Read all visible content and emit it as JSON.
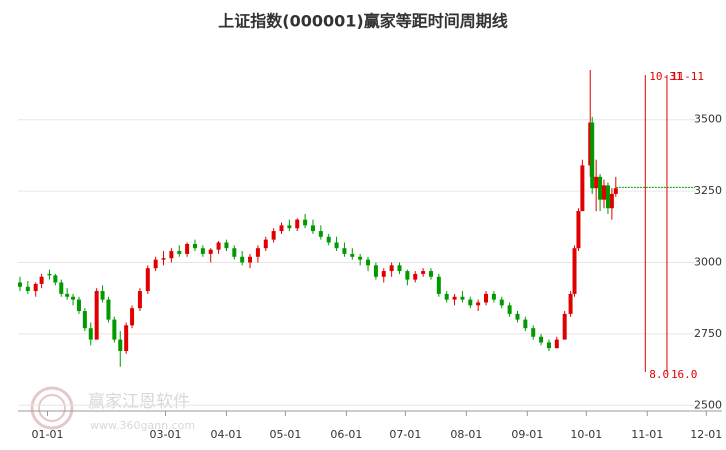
{
  "chart_data": {
    "type": "candlestick",
    "title": "上证指数(000001)赢家等距时间周期线",
    "watermark": "赢家江恩软件",
    "watermark_url": "www.360gann.com",
    "up_color": "#e00000",
    "down_color": "#009a00",
    "xlim": [
      -15,
      343
    ],
    "ylim": [
      2480,
      3730
    ],
    "xticks": [
      {
        "value": 0,
        "label": "01-01"
      },
      {
        "value": 60,
        "label": "03-01"
      },
      {
        "value": 91,
        "label": "04-01"
      },
      {
        "value": 121,
        "label": "05-01"
      },
      {
        "value": 152,
        "label": "06-01"
      },
      {
        "value": 182,
        "label": "07-01"
      },
      {
        "value": 213,
        "label": "08-01"
      },
      {
        "value": 244,
        "label": "09-01"
      },
      {
        "value": 274,
        "label": "10-01"
      },
      {
        "value": 305,
        "label": "11-01"
      },
      {
        "value": 335,
        "label": "12-01"
      }
    ],
    "yticks": [
      2500,
      2750,
      3000,
      3250,
      3500
    ],
    "grid": true,
    "reference_line": {
      "value": 3263,
      "color": "#009a00"
    },
    "cycle_lines": [
      {
        "x": 304,
        "label": "10-31",
        "bottom_label": "8.0"
      },
      {
        "x": 315,
        "label": "11-11",
        "bottom_label": "16.0"
      }
    ],
    "ohlc": [
      [
        -14,
        2930,
        2950,
        2900,
        2915
      ],
      [
        -10,
        2915,
        2935,
        2890,
        2900
      ],
      [
        -6,
        2900,
        2930,
        2880,
        2925
      ],
      [
        -3,
        2925,
        2960,
        2910,
        2950
      ],
      [
        1,
        2960,
        2975,
        2940,
        2955
      ],
      [
        4,
        2955,
        2960,
        2920,
        2930
      ],
      [
        7,
        2930,
        2940,
        2880,
        2890
      ],
      [
        10,
        2890,
        2910,
        2870,
        2880
      ],
      [
        13,
        2880,
        2890,
        2850,
        2870
      ],
      [
        16,
        2870,
        2880,
        2820,
        2830
      ],
      [
        19,
        2830,
        2840,
        2760,
        2770
      ],
      [
        22,
        2770,
        2790,
        2710,
        2730
      ],
      [
        25,
        2730,
        2910,
        2730,
        2900
      ],
      [
        28,
        2900,
        2920,
        2860,
        2870
      ],
      [
        31,
        2870,
        2880,
        2790,
        2800
      ],
      [
        34,
        2800,
        2810,
        2720,
        2730
      ],
      [
        37,
        2730,
        2760,
        2635,
        2690
      ],
      [
        40,
        2690,
        2790,
        2680,
        2780
      ],
      [
        43,
        2780,
        2850,
        2770,
        2840
      ],
      [
        47,
        2840,
        2910,
        2830,
        2900
      ],
      [
        51,
        2900,
        2990,
        2890,
        2980
      ],
      [
        55,
        2980,
        3020,
        2970,
        3010
      ],
      [
        59,
        3010,
        3040,
        2990,
        3015
      ],
      [
        63,
        3015,
        3050,
        3000,
        3040
      ],
      [
        67,
        3040,
        3060,
        3020,
        3030
      ],
      [
        71,
        3030,
        3070,
        3020,
        3065
      ],
      [
        75,
        3065,
        3080,
        3040,
        3050
      ],
      [
        79,
        3050,
        3060,
        3020,
        3030
      ],
      [
        83,
        3030,
        3050,
        3000,
        3045
      ],
      [
        87,
        3045,
        3075,
        3030,
        3070
      ],
      [
        91,
        3070,
        3080,
        3040,
        3050
      ],
      [
        95,
        3050,
        3060,
        3010,
        3020
      ],
      [
        99,
        3020,
        3040,
        2990,
        3000
      ],
      [
        103,
        3000,
        3030,
        2980,
        3020
      ],
      [
        107,
        3020,
        3060,
        3000,
        3050
      ],
      [
        111,
        3050,
        3090,
        3040,
        3080
      ],
      [
        115,
        3080,
        3120,
        3070,
        3110
      ],
      [
        119,
        3110,
        3140,
        3100,
        3130
      ],
      [
        123,
        3130,
        3150,
        3110,
        3120
      ],
      [
        127,
        3120,
        3155,
        3110,
        3150
      ],
      [
        131,
        3150,
        3170,
        3120,
        3130
      ],
      [
        135,
        3130,
        3150,
        3100,
        3110
      ],
      [
        139,
        3110,
        3130,
        3080,
        3090
      ],
      [
        143,
        3090,
        3100,
        3060,
        3070
      ],
      [
        147,
        3070,
        3090,
        3040,
        3050
      ],
      [
        151,
        3050,
        3070,
        3020,
        3030
      ],
      [
        155,
        3030,
        3050,
        3010,
        3020
      ],
      [
        159,
        3020,
        3030,
        2990,
        3010
      ],
      [
        163,
        3010,
        3020,
        2970,
        2990
      ],
      [
        167,
        2990,
        3000,
        2940,
        2950
      ],
      [
        171,
        2950,
        2980,
        2930,
        2970
      ],
      [
        175,
        2970,
        3000,
        2950,
        2990
      ],
      [
        179,
        2990,
        3000,
        2960,
        2970
      ],
      [
        183,
        2970,
        2975,
        2920,
        2940
      ],
      [
        187,
        2940,
        2970,
        2930,
        2960
      ],
      [
        191,
        2960,
        2980,
        2950,
        2970
      ],
      [
        195,
        2970,
        2980,
        2940,
        2950
      ],
      [
        199,
        2950,
        2960,
        2880,
        2890
      ],
      [
        203,
        2890,
        2900,
        2860,
        2870
      ],
      [
        207,
        2870,
        2890,
        2850,
        2880
      ],
      [
        211,
        2880,
        2900,
        2860,
        2870
      ],
      [
        215,
        2870,
        2880,
        2840,
        2850
      ],
      [
        219,
        2850,
        2870,
        2830,
        2860
      ],
      [
        223,
        2860,
        2900,
        2850,
        2890
      ],
      [
        227,
        2890,
        2900,
        2860,
        2870
      ],
      [
        231,
        2870,
        2880,
        2840,
        2850
      ],
      [
        235,
        2850,
        2860,
        2810,
        2820
      ],
      [
        239,
        2820,
        2830,
        2790,
        2800
      ],
      [
        243,
        2800,
        2810,
        2760,
        2770
      ],
      [
        247,
        2770,
        2780,
        2730,
        2740
      ],
      [
        251,
        2740,
        2750,
        2710,
        2720
      ],
      [
        255,
        2720,
        2730,
        2690,
        2700
      ],
      [
        259,
        2700,
        2740,
        2700,
        2730
      ],
      [
        263,
        2730,
        2830,
        2730,
        2820
      ],
      [
        266,
        2820,
        2900,
        2810,
        2890
      ],
      [
        268,
        2890,
        3060,
        2880,
        3050
      ],
      [
        270,
        3050,
        3190,
        3040,
        3180
      ],
      [
        272,
        3180,
        3360,
        3180,
        3340
      ],
      [
        276,
        3340,
        3674,
        3300,
        3490
      ],
      [
        277,
        3490,
        3510,
        3240,
        3260
      ],
      [
        279,
        3260,
        3360,
        3180,
        3300
      ],
      [
        281,
        3300,
        3310,
        3180,
        3220
      ],
      [
        283,
        3220,
        3290,
        3190,
        3270
      ],
      [
        285,
        3270,
        3280,
        3170,
        3190
      ],
      [
        287,
        3190,
        3260,
        3150,
        3240
      ],
      [
        289,
        3240,
        3300,
        3230,
        3260
      ]
    ]
  }
}
